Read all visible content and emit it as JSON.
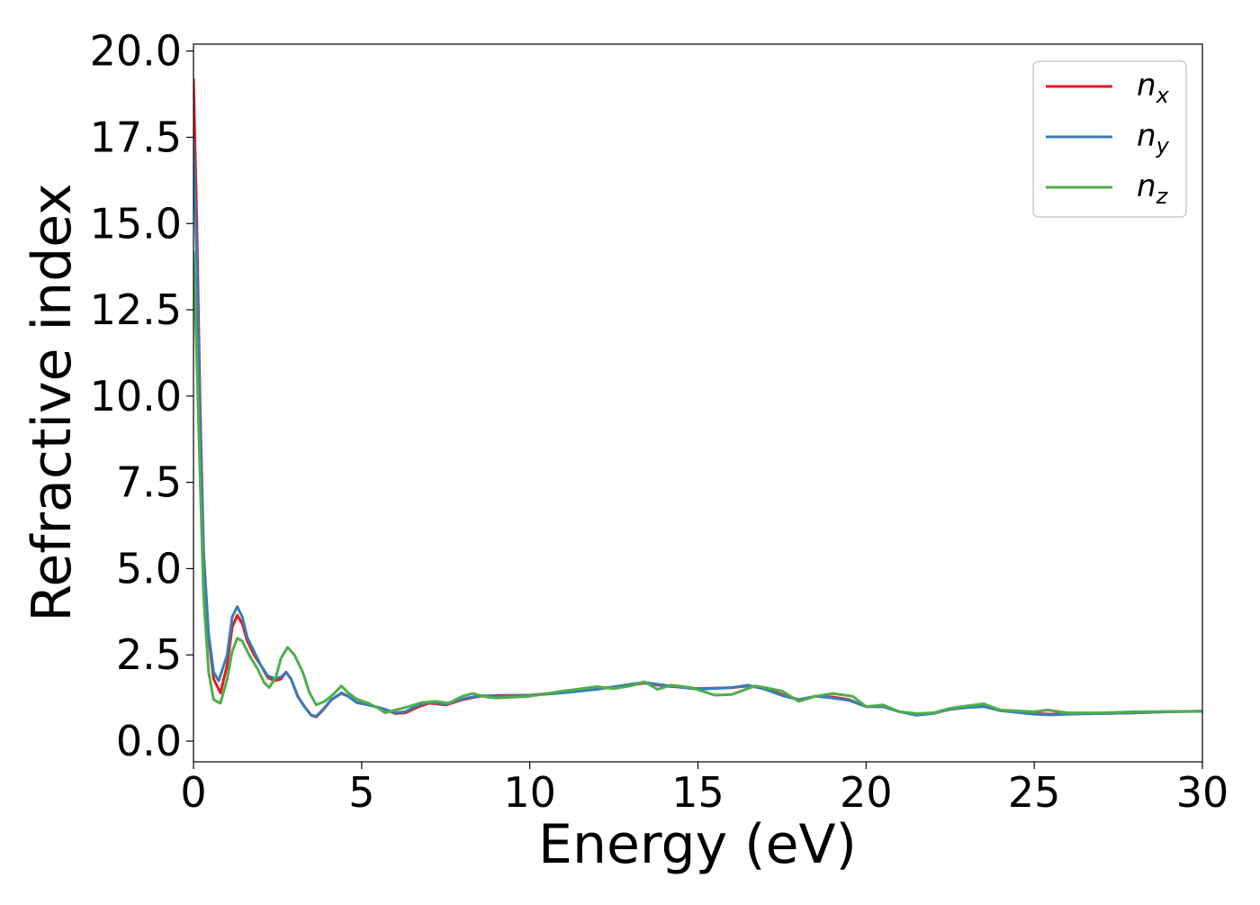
{
  "chart_data": {
    "type": "line",
    "xlabel": "Energy (eV)",
    "ylabel": "Refractive index",
    "xlim": [
      0,
      30
    ],
    "ylim": [
      -0.6,
      20.2
    ],
    "xticks": [
      0,
      5,
      10,
      15,
      20,
      25,
      30
    ],
    "xtick_labels": [
      "0",
      "5",
      "10",
      "15",
      "20",
      "25",
      "30"
    ],
    "yticks": [
      0.0,
      2.5,
      5.0,
      7.5,
      10.0,
      12.5,
      15.0,
      17.5,
      20.0
    ],
    "ytick_labels": [
      "0.0",
      "2.5",
      "5.0",
      "7.5",
      "10.0",
      "12.5",
      "15.0",
      "17.5",
      "20.0"
    ],
    "grid": false,
    "legend_position": "top-right",
    "series": [
      {
        "name": "n",
        "subscript": "x",
        "color": "#e41a1c",
        "points": [
          [
            0.0,
            19.2
          ],
          [
            0.1,
            15.0
          ],
          [
            0.2,
            9.5
          ],
          [
            0.3,
            5.5
          ],
          [
            0.45,
            3.0
          ],
          [
            0.6,
            1.8
          ],
          [
            0.8,
            1.4
          ],
          [
            1.0,
            2.2
          ],
          [
            1.15,
            3.3
          ],
          [
            1.3,
            3.65
          ],
          [
            1.45,
            3.4
          ],
          [
            1.6,
            2.9
          ],
          [
            1.8,
            2.5
          ],
          [
            2.0,
            2.2
          ],
          [
            2.2,
            1.85
          ],
          [
            2.4,
            1.75
          ],
          [
            2.6,
            1.8
          ],
          [
            2.75,
            2.0
          ],
          [
            2.9,
            1.8
          ],
          [
            3.1,
            1.3
          ],
          [
            3.3,
            1.0
          ],
          [
            3.5,
            0.75
          ],
          [
            3.65,
            0.7
          ],
          [
            3.85,
            0.9
          ],
          [
            4.1,
            1.2
          ],
          [
            4.4,
            1.38
          ],
          [
            4.6,
            1.3
          ],
          [
            4.85,
            1.12
          ],
          [
            5.2,
            1.05
          ],
          [
            5.6,
            0.95
          ],
          [
            6.0,
            0.8
          ],
          [
            6.3,
            0.82
          ],
          [
            6.7,
            1.0
          ],
          [
            7.0,
            1.1
          ],
          [
            7.5,
            1.05
          ],
          [
            8.0,
            1.2
          ],
          [
            8.5,
            1.3
          ],
          [
            9.0,
            1.32
          ],
          [
            10.0,
            1.33
          ],
          [
            11.0,
            1.42
          ],
          [
            12.0,
            1.52
          ],
          [
            13.0,
            1.62
          ],
          [
            13.4,
            1.68
          ],
          [
            14.0,
            1.6
          ],
          [
            15.0,
            1.52
          ],
          [
            16.0,
            1.55
          ],
          [
            16.5,
            1.6
          ],
          [
            17.0,
            1.52
          ],
          [
            17.5,
            1.35
          ],
          [
            18.0,
            1.2
          ],
          [
            18.5,
            1.3
          ],
          [
            19.0,
            1.28
          ],
          [
            19.5,
            1.2
          ],
          [
            20.0,
            1.0
          ],
          [
            20.5,
            1.0
          ],
          [
            21.0,
            0.85
          ],
          [
            21.5,
            0.78
          ],
          [
            22.0,
            0.82
          ],
          [
            22.5,
            0.92
          ],
          [
            23.0,
            0.98
          ],
          [
            23.5,
            1.05
          ],
          [
            24.0,
            0.9
          ],
          [
            25.0,
            0.8
          ],
          [
            25.5,
            0.78
          ],
          [
            26.0,
            0.8
          ],
          [
            27.0,
            0.8
          ],
          [
            28.0,
            0.82
          ],
          [
            29.0,
            0.85
          ],
          [
            30.0,
            0.87
          ]
        ]
      },
      {
        "name": "n",
        "subscript": "y",
        "color": "#377eb8",
        "points": [
          [
            0.0,
            17.5
          ],
          [
            0.1,
            13.8
          ],
          [
            0.2,
            9.0
          ],
          [
            0.3,
            5.4
          ],
          [
            0.45,
            3.1
          ],
          [
            0.6,
            2.0
          ],
          [
            0.75,
            1.75
          ],
          [
            1.0,
            2.5
          ],
          [
            1.15,
            3.6
          ],
          [
            1.3,
            3.9
          ],
          [
            1.45,
            3.6
          ],
          [
            1.6,
            3.0
          ],
          [
            1.8,
            2.6
          ],
          [
            2.0,
            2.2
          ],
          [
            2.2,
            1.9
          ],
          [
            2.4,
            1.82
          ],
          [
            2.6,
            1.85
          ],
          [
            2.75,
            2.0
          ],
          [
            2.9,
            1.8
          ],
          [
            3.1,
            1.3
          ],
          [
            3.3,
            1.0
          ],
          [
            3.5,
            0.75
          ],
          [
            3.65,
            0.72
          ],
          [
            3.85,
            0.92
          ],
          [
            4.1,
            1.2
          ],
          [
            4.4,
            1.4
          ],
          [
            4.6,
            1.3
          ],
          [
            4.85,
            1.12
          ],
          [
            5.2,
            1.05
          ],
          [
            5.6,
            0.95
          ],
          [
            6.0,
            0.82
          ],
          [
            6.3,
            0.85
          ],
          [
            6.7,
            1.05
          ],
          [
            7.0,
            1.12
          ],
          [
            7.5,
            1.08
          ],
          [
            8.0,
            1.22
          ],
          [
            8.5,
            1.32
          ],
          [
            9.0,
            1.3
          ],
          [
            10.0,
            1.32
          ],
          [
            11.0,
            1.4
          ],
          [
            12.0,
            1.5
          ],
          [
            13.0,
            1.65
          ],
          [
            13.4,
            1.7
          ],
          [
            14.0,
            1.62
          ],
          [
            15.0,
            1.5
          ],
          [
            16.0,
            1.55
          ],
          [
            16.5,
            1.62
          ],
          [
            17.0,
            1.5
          ],
          [
            17.5,
            1.32
          ],
          [
            18.0,
            1.2
          ],
          [
            18.5,
            1.3
          ],
          [
            19.0,
            1.25
          ],
          [
            19.5,
            1.18
          ],
          [
            20.0,
            1.0
          ],
          [
            20.5,
            1.0
          ],
          [
            21.0,
            0.85
          ],
          [
            21.5,
            0.75
          ],
          [
            22.0,
            0.8
          ],
          [
            22.5,
            0.93
          ],
          [
            23.0,
            0.97
          ],
          [
            23.5,
            1.0
          ],
          [
            24.0,
            0.88
          ],
          [
            25.0,
            0.78
          ],
          [
            25.5,
            0.76
          ],
          [
            26.0,
            0.78
          ],
          [
            27.0,
            0.8
          ],
          [
            28.0,
            0.82
          ],
          [
            29.0,
            0.85
          ],
          [
            30.0,
            0.87
          ]
        ]
      },
      {
        "name": "n",
        "subscript": "z",
        "color": "#4daf4a",
        "points": [
          [
            0.0,
            14.2
          ],
          [
            0.1,
            11.0
          ],
          [
            0.2,
            7.5
          ],
          [
            0.3,
            4.2
          ],
          [
            0.45,
            2.0
          ],
          [
            0.6,
            1.2
          ],
          [
            0.8,
            1.1
          ],
          [
            1.0,
            1.8
          ],
          [
            1.15,
            2.6
          ],
          [
            1.3,
            2.98
          ],
          [
            1.45,
            2.9
          ],
          [
            1.65,
            2.5
          ],
          [
            1.9,
            2.1
          ],
          [
            2.1,
            1.7
          ],
          [
            2.25,
            1.55
          ],
          [
            2.45,
            1.85
          ],
          [
            2.6,
            2.4
          ],
          [
            2.8,
            2.72
          ],
          [
            3.0,
            2.5
          ],
          [
            3.25,
            2.0
          ],
          [
            3.45,
            1.4
          ],
          [
            3.65,
            1.05
          ],
          [
            3.9,
            1.15
          ],
          [
            4.15,
            1.35
          ],
          [
            4.4,
            1.6
          ],
          [
            4.6,
            1.4
          ],
          [
            4.85,
            1.22
          ],
          [
            5.2,
            1.1
          ],
          [
            5.5,
            0.95
          ],
          [
            5.7,
            0.82
          ],
          [
            6.0,
            0.9
          ],
          [
            6.4,
            1.0
          ],
          [
            6.8,
            1.12
          ],
          [
            7.2,
            1.15
          ],
          [
            7.6,
            1.1
          ],
          [
            8.0,
            1.3
          ],
          [
            8.3,
            1.38
          ],
          [
            8.7,
            1.28
          ],
          [
            9.0,
            1.25
          ],
          [
            10.0,
            1.3
          ],
          [
            11.0,
            1.45
          ],
          [
            12.0,
            1.58
          ],
          [
            12.5,
            1.52
          ],
          [
            13.0,
            1.6
          ],
          [
            13.4,
            1.72
          ],
          [
            13.8,
            1.5
          ],
          [
            14.2,
            1.62
          ],
          [
            14.8,
            1.55
          ],
          [
            15.5,
            1.33
          ],
          [
            16.0,
            1.35
          ],
          [
            16.7,
            1.6
          ],
          [
            17.0,
            1.55
          ],
          [
            17.5,
            1.45
          ],
          [
            18.0,
            1.15
          ],
          [
            18.5,
            1.3
          ],
          [
            19.0,
            1.38
          ],
          [
            19.6,
            1.3
          ],
          [
            20.0,
            1.0
          ],
          [
            20.5,
            1.05
          ],
          [
            21.0,
            0.85
          ],
          [
            21.5,
            0.8
          ],
          [
            22.0,
            0.82
          ],
          [
            22.5,
            0.95
          ],
          [
            23.0,
            1.02
          ],
          [
            23.5,
            1.08
          ],
          [
            24.0,
            0.9
          ],
          [
            25.0,
            0.85
          ],
          [
            25.4,
            0.9
          ],
          [
            26.0,
            0.82
          ],
          [
            27.0,
            0.82
          ],
          [
            28.0,
            0.85
          ],
          [
            29.0,
            0.86
          ],
          [
            30.0,
            0.86
          ]
        ]
      }
    ]
  }
}
